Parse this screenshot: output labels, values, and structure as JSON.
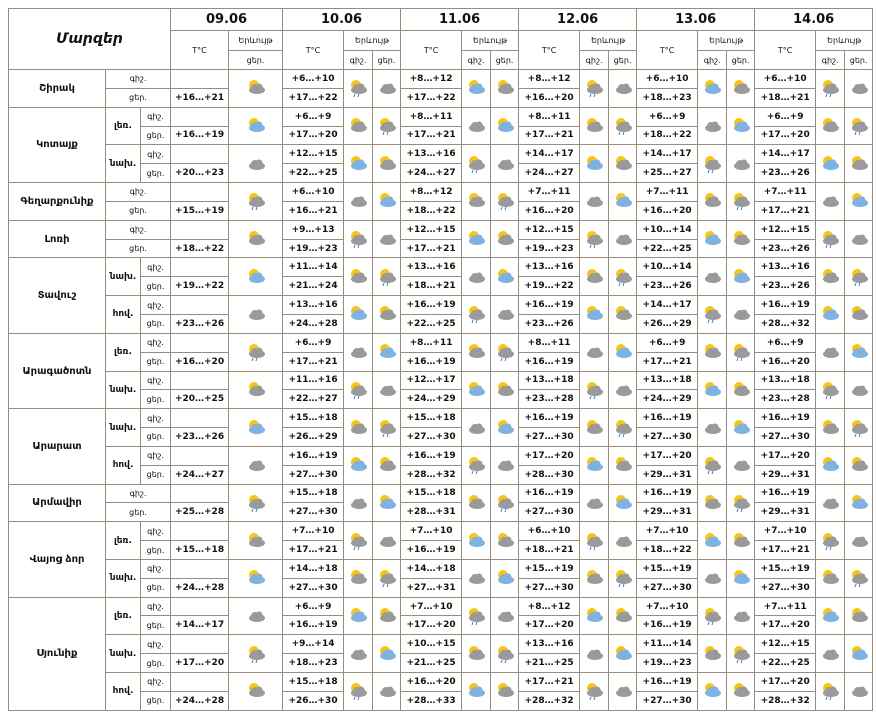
{
  "header": {
    "title": "Մարզեր",
    "dates": [
      "09.06",
      "10.06",
      "11.06",
      "12.06",
      "13.06",
      "14.06"
    ],
    "temp_label": "T°C",
    "phenomenon_label": "Երևույթ",
    "night_label": "գիշ.",
    "day_label": "ցեր."
  },
  "regions": [
    {
      "name": "Շիրակ",
      "zones": [
        {
          "first_day": "+16…+21",
          "days": [
            [
              "+6…+10",
              "+17…+22"
            ],
            [
              "+8…+12",
              "+17…+22"
            ],
            [
              "+8…+12",
              "+16…+20"
            ],
            [
              "+6…+10",
              "+18…+23"
            ],
            [
              "+6…+10",
              "+18…+21"
            ]
          ]
        }
      ]
    },
    {
      "name": "Կոտայք",
      "zones": [
        {
          "name": "լեռ.",
          "first_day": "+16…+19",
          "days": [
            [
              "+6…+9",
              "+17…+20"
            ],
            [
              "+8…+11",
              "+17…+21"
            ],
            [
              "+8…+11",
              "+17…+21"
            ],
            [
              "+6…+9",
              "+18…+22"
            ],
            [
              "+6…+9",
              "+17…+20"
            ]
          ]
        },
        {
          "name": "նախ.",
          "first_day": "+20…+23",
          "days": [
            [
              "+12…+15",
              "+22…+25"
            ],
            [
              "+13…+16",
              "+24…+27"
            ],
            [
              "+14…+17",
              "+24…+27"
            ],
            [
              "+14…+17",
              "+25…+27"
            ],
            [
              "+14…+17",
              "+23…+26"
            ]
          ]
        }
      ]
    },
    {
      "name": "Գեղարքունիք",
      "zones": [
        {
          "first_day": "+15…+19",
          "days": [
            [
              "+6…+10",
              "+16…+21"
            ],
            [
              "+8…+12",
              "+18…+22"
            ],
            [
              "+7…+11",
              "+16…+20"
            ],
            [
              "+7…+11",
              "+16…+20"
            ],
            [
              "+7…+11",
              "+17…+21"
            ]
          ]
        }
      ]
    },
    {
      "name": "Լոռի",
      "zones": [
        {
          "first_day": "+18…+22",
          "days": [
            [
              "+9…+13",
              "+19…+23"
            ],
            [
              "+12…+15",
              "+17…+21"
            ],
            [
              "+12…+15",
              "+19…+23"
            ],
            [
              "+10…+14",
              "+22…+25"
            ],
            [
              "+12…+15",
              "+23…+26"
            ]
          ]
        }
      ]
    },
    {
      "name": "Տավուշ",
      "zones": [
        {
          "name": "նախ.",
          "first_day": "+19…+22",
          "days": [
            [
              "+11…+14",
              "+21…+24"
            ],
            [
              "+13…+16",
              "+18…+21"
            ],
            [
              "+13…+16",
              "+19…+22"
            ],
            [
              "+10…+14",
              "+23…+26"
            ],
            [
              "+13…+16",
              "+23…+26"
            ]
          ]
        },
        {
          "name": "հով.",
          "first_day": "+23…+26",
          "days": [
            [
              "+13…+16",
              "+24…+28"
            ],
            [
              "+16…+19",
              "+22…+25"
            ],
            [
              "+16…+19",
              "+23…+26"
            ],
            [
              "+14…+17",
              "+26…+29"
            ],
            [
              "+16…+19",
              "+28…+32"
            ]
          ]
        }
      ]
    },
    {
      "name": "Արագածոտն",
      "zones": [
        {
          "name": "լեռ.",
          "first_day": "+16…+20",
          "days": [
            [
              "+6…+9",
              "+17…+21"
            ],
            [
              "+8…+11",
              "+16…+19"
            ],
            [
              "+8…+11",
              "+16…+19"
            ],
            [
              "+6…+9",
              "+17…+21"
            ],
            [
              "+6…+9",
              "+16…+20"
            ]
          ]
        },
        {
          "name": "նախ.",
          "first_day": "+20…+25",
          "days": [
            [
              "+11…+16",
              "+22…+27"
            ],
            [
              "+12…+17",
              "+24…+29"
            ],
            [
              "+13…+18",
              "+23…+28"
            ],
            [
              "+13…+18",
              "+24…+29"
            ],
            [
              "+13…+18",
              "+23…+28"
            ]
          ]
        }
      ]
    },
    {
      "name": "Արարատ",
      "zones": [
        {
          "name": "նախ.",
          "first_day": "+23…+26",
          "days": [
            [
              "+15…+18",
              "+26…+29"
            ],
            [
              "+15…+18",
              "+27…+30"
            ],
            [
              "+16…+19",
              "+27…+30"
            ],
            [
              "+16…+19",
              "+27…+30"
            ],
            [
              "+16…+19",
              "+27…+30"
            ]
          ]
        },
        {
          "name": "հով.",
          "first_day": "+24…+27",
          "days": [
            [
              "+16…+19",
              "+27…+30"
            ],
            [
              "+16…+19",
              "+28…+32"
            ],
            [
              "+17…+20",
              "+28…+30"
            ],
            [
              "+17…+20",
              "+29…+31"
            ],
            [
              "+17…+20",
              "+29…+31"
            ]
          ]
        }
      ]
    },
    {
      "name": "Արմավիր",
      "zones": [
        {
          "first_day": "+25…+28",
          "days": [
            [
              "+15…+18",
              "+27…+30"
            ],
            [
              "+15…+18",
              "+28…+31"
            ],
            [
              "+16…+19",
              "+27…+30"
            ],
            [
              "+16…+19",
              "+29…+31"
            ],
            [
              "+16…+19",
              "+29…+31"
            ]
          ]
        }
      ]
    },
    {
      "name": "Վայոց ձոր",
      "zones": [
        {
          "name": "լեռ.",
          "first_day": "+15…+18",
          "days": [
            [
              "+7…+10",
              "+17…+21"
            ],
            [
              "+7…+10",
              "+16…+19"
            ],
            [
              "+6…+10",
              "+18…+21"
            ],
            [
              "+7…+10",
              "+18…+22"
            ],
            [
              "+7…+10",
              "+17…+21"
            ]
          ]
        },
        {
          "name": "նախ.",
          "first_day": "+24…+28",
          "days": [
            [
              "+14…+18",
              "+27…+30"
            ],
            [
              "+14…+18",
              "+27…+31"
            ],
            [
              "+15…+19",
              "+27…+30"
            ],
            [
              "+15…+19",
              "+27…+30"
            ],
            [
              "+15…+19",
              "+27…+30"
            ]
          ]
        }
      ]
    },
    {
      "name": "Սյունիք",
      "zones": [
        {
          "name": "լեռ.",
          "first_day": "+14…+17",
          "days": [
            [
              "+6…+9",
              "+16…+19"
            ],
            [
              "+7…+10",
              "+17…+20"
            ],
            [
              "+8…+12",
              "+17…+20"
            ],
            [
              "+7…+10",
              "+16…+19"
            ],
            [
              "+7…+11",
              "+17…+20"
            ]
          ]
        },
        {
          "name": "նախ.",
          "first_day": "+17…+20",
          "days": [
            [
              "+9…+14",
              "+18…+23"
            ],
            [
              "+10…+15",
              "+21…+25"
            ],
            [
              "+13…+16",
              "+21…+25"
            ],
            [
              "+11…+14",
              "+19…+23"
            ],
            [
              "+12…+15",
              "+22…+25"
            ]
          ]
        },
        {
          "name": "հով.",
          "first_day": "+24…+28",
          "days": [
            [
              "+15…+18",
              "+26…+30"
            ],
            [
              "+16…+20",
              "+28…+33"
            ],
            [
              "+17…+21",
              "+28…+32"
            ],
            [
              "+16…+19",
              "+27…+30"
            ],
            [
              "+17…+20",
              "+28…+32"
            ]
          ]
        }
      ]
    }
  ]
}
